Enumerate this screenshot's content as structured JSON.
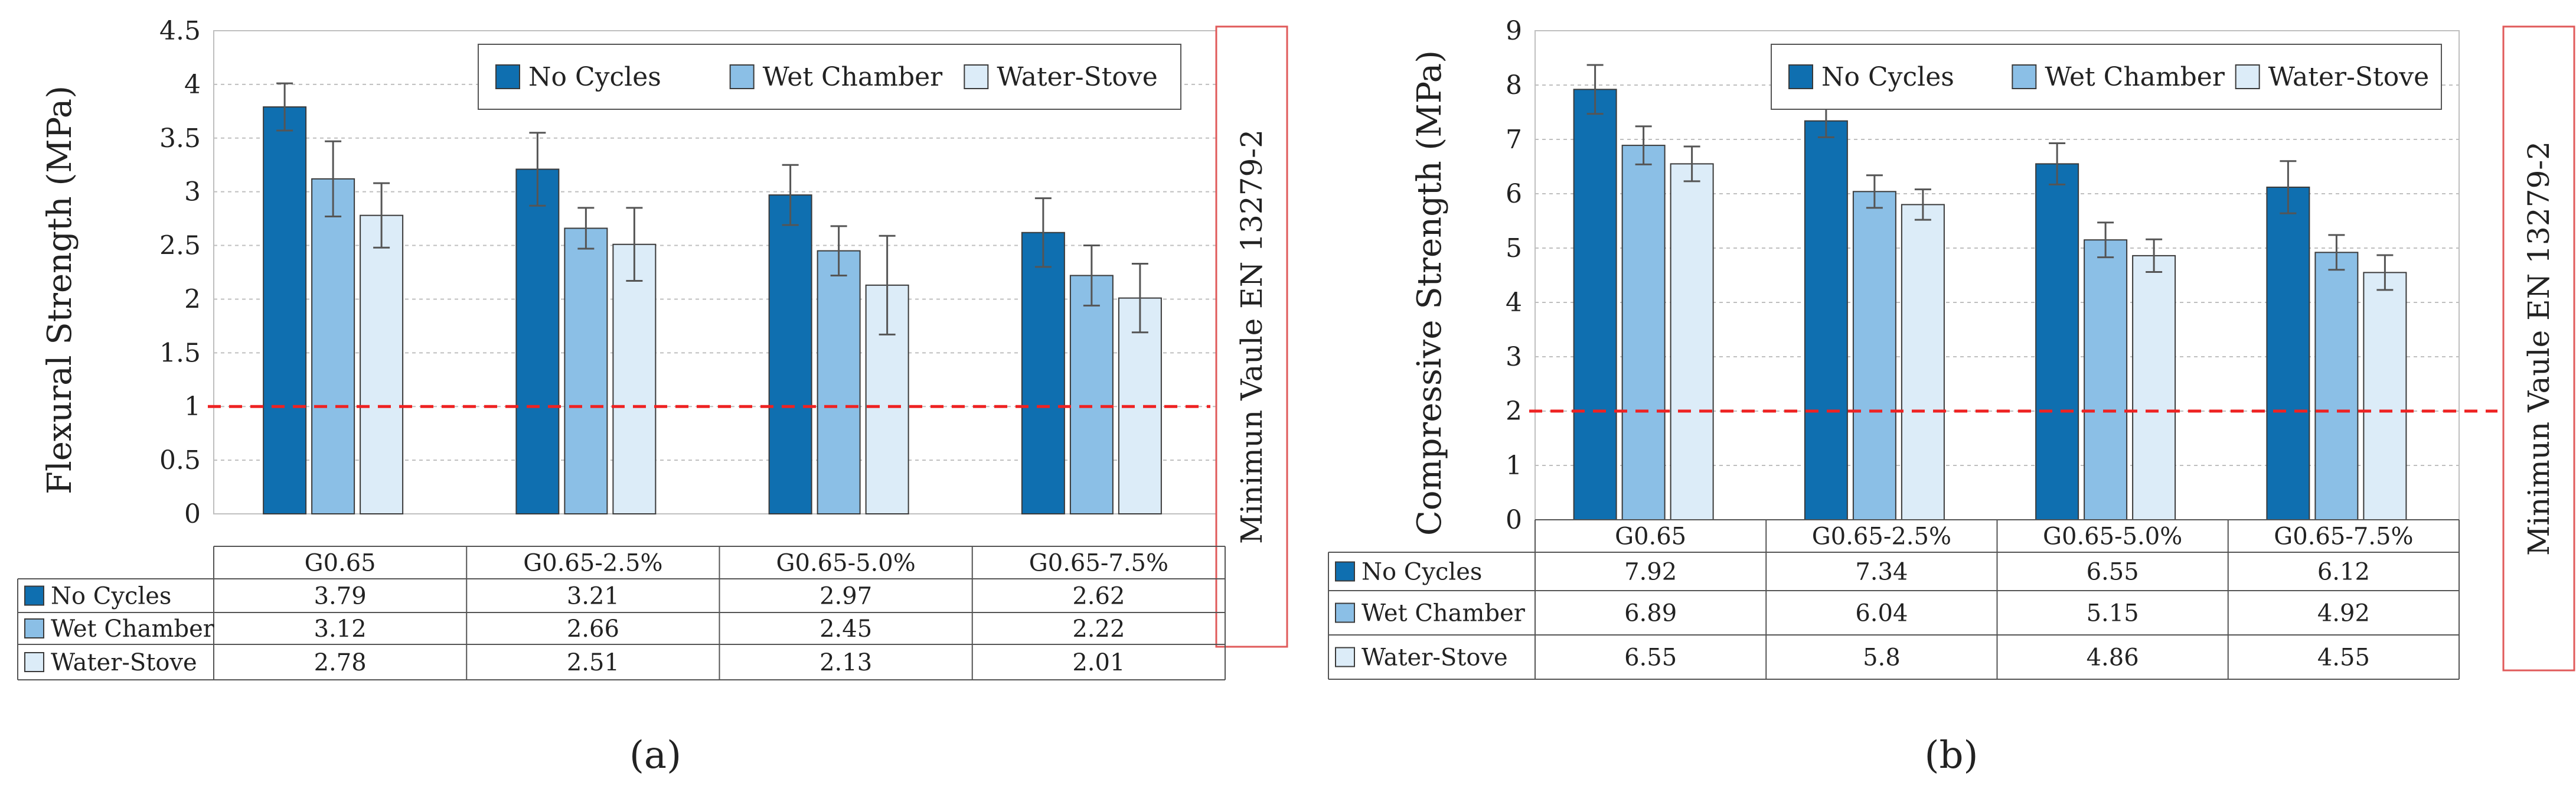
{
  "colors": {
    "no_cycles": "#0f6fb0",
    "wet_chamber": "#8bbfe6",
    "water_stove": "#dcecf8",
    "grid": "#bfbfbf",
    "reference_line": "#ee2222",
    "note_border": "#e05a5a",
    "error_bar": "#555555"
  },
  "chart_data": [
    {
      "type": "bar",
      "panel_label": "(a)",
      "title": "",
      "xlabel": "",
      "ylabel": "Flexural Strength (MPa)",
      "ylim": [
        0,
        4.5
      ],
      "yticks": [
        0,
        0.5,
        1,
        1.5,
        2,
        2.5,
        3,
        3.5,
        4,
        4.5
      ],
      "ytick_labels": [
        "0",
        "0.5",
        "1",
        "1.5",
        "2",
        "2.5",
        "3",
        "3.5",
        "4",
        "4.5"
      ],
      "grid": true,
      "legend_position": "top-right",
      "categories": [
        "G0.65",
        "G0.65-2.5%",
        "G0.65-5.0%",
        "G0.65-7.5%"
      ],
      "series": [
        {
          "name": "No Cycles",
          "values": [
            3.79,
            3.21,
            2.97,
            2.62
          ],
          "errors": [
            0.22,
            0.34,
            0.28,
            0.32
          ],
          "table_values": [
            "3.79",
            "3.21",
            "2.97",
            "2.62"
          ]
        },
        {
          "name": "Wet Chamber",
          "values": [
            3.12,
            2.66,
            2.45,
            2.22
          ],
          "errors": [
            0.35,
            0.19,
            0.23,
            0.28
          ],
          "table_values": [
            "3.12",
            "2.66",
            "2.45",
            "2.22"
          ]
        },
        {
          "name": "Water-Stove",
          "values": [
            2.78,
            2.51,
            2.13,
            2.01
          ],
          "errors": [
            0.3,
            0.34,
            0.46,
            0.32
          ],
          "table_values": [
            "2.78",
            "2.51",
            "2.13",
            "2.01"
          ]
        }
      ],
      "reference_line": {
        "value": 1,
        "label": "Minimun Vaule EN 13279-2"
      }
    },
    {
      "type": "bar",
      "panel_label": "(b)",
      "title": "",
      "xlabel": "",
      "ylabel": "Compressive Strength (MPa)",
      "ylim": [
        0,
        9
      ],
      "yticks": [
        0,
        1,
        2,
        3,
        4,
        5,
        6,
        7,
        8,
        9
      ],
      "ytick_labels": [
        "0",
        "1",
        "2",
        "3",
        "4",
        "5",
        "6",
        "7",
        "8",
        "9"
      ],
      "grid": true,
      "legend_position": "top-right",
      "categories": [
        "G0.65",
        "G0.65-2.5%",
        "G0.65-5.0%",
        "G0.65-7.5%"
      ],
      "series": [
        {
          "name": "No Cycles",
          "values": [
            7.92,
            7.34,
            6.55,
            6.12
          ],
          "errors": [
            0.45,
            0.3,
            0.38,
            0.48
          ],
          "table_values": [
            "7.92",
            "7.34",
            "6.55",
            "6.12"
          ]
        },
        {
          "name": "Wet Chamber",
          "values": [
            6.89,
            6.04,
            5.15,
            4.92
          ],
          "errors": [
            0.35,
            0.3,
            0.32,
            0.32
          ],
          "table_values": [
            "6.89",
            "6.04",
            "5.15",
            "4.92"
          ]
        },
        {
          "name": "Water-Stove",
          "values": [
            6.55,
            5.8,
            4.86,
            4.55
          ],
          "errors": [
            0.32,
            0.28,
            0.3,
            0.32
          ],
          "table_values": [
            "6.55",
            "5.8",
            "4.86",
            "4.55"
          ]
        }
      ],
      "reference_line": {
        "value": 2,
        "label": "Minimun Vaule EN 13279-2"
      }
    }
  ]
}
